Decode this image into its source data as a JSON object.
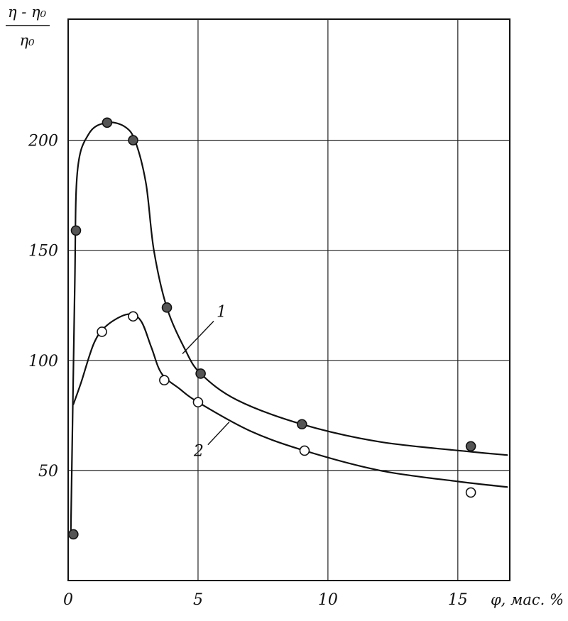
{
  "chart_data": {
    "type": "line",
    "title": "",
    "ylabel": {
      "numerator": "η - η₀",
      "denominator": "η₀"
    },
    "xlabel": "φ, мас. %",
    "xlim": [
      0,
      17
    ],
    "ylim": [
      0,
      255
    ],
    "x_ticks": [
      0,
      5,
      10,
      15
    ],
    "x_tick_labels": [
      "0",
      "5",
      "10",
      "15"
    ],
    "y_ticks": [
      50,
      100,
      150,
      200
    ],
    "y_tick_labels": [
      "50",
      "100",
      "150",
      "200"
    ],
    "x_gridlines": [
      5,
      10,
      15
    ],
    "y_gridlines": [
      50,
      100,
      150,
      200
    ],
    "grid": true,
    "series": [
      {
        "name": "1",
        "marker": "filled-circle",
        "points": [
          {
            "x": 0.2,
            "y": 21
          },
          {
            "x": 0.3,
            "y": 159
          },
          {
            "x": 1.5,
            "y": 208
          },
          {
            "x": 2.5,
            "y": 200
          },
          {
            "x": 3.8,
            "y": 124
          },
          {
            "x": 5.1,
            "y": 94
          },
          {
            "x": 9.0,
            "y": 71
          },
          {
            "x": 15.5,
            "y": 61
          }
        ],
        "curve": [
          {
            "x": 0.1,
            "y": 21
          },
          {
            "x": 0.25,
            "y": 130
          },
          {
            "x": 0.35,
            "y": 185
          },
          {
            "x": 0.8,
            "y": 203
          },
          {
            "x": 1.5,
            "y": 208
          },
          {
            "x": 2.2,
            "y": 206
          },
          {
            "x": 2.6,
            "y": 199
          },
          {
            "x": 3.0,
            "y": 180
          },
          {
            "x": 3.3,
            "y": 150
          },
          {
            "x": 3.8,
            "y": 124
          },
          {
            "x": 4.5,
            "y": 105
          },
          {
            "x": 5.1,
            "y": 94
          },
          {
            "x": 6.5,
            "y": 82
          },
          {
            "x": 9.0,
            "y": 71
          },
          {
            "x": 12.0,
            "y": 63
          },
          {
            "x": 15.5,
            "y": 58.5
          },
          {
            "x": 16.9,
            "y": 57
          }
        ]
      },
      {
        "name": "2",
        "marker": "open-circle",
        "points": [
          {
            "x": 1.3,
            "y": 113
          },
          {
            "x": 2.5,
            "y": 120
          },
          {
            "x": 3.7,
            "y": 91
          },
          {
            "x": 5.0,
            "y": 81
          },
          {
            "x": 9.1,
            "y": 59
          },
          {
            "x": 15.5,
            "y": 40
          }
        ],
        "curve": [
          {
            "x": 0.2,
            "y": 80
          },
          {
            "x": 0.5,
            "y": 90
          },
          {
            "x": 1.0,
            "y": 108
          },
          {
            "x": 1.5,
            "y": 116
          },
          {
            "x": 2.3,
            "y": 121
          },
          {
            "x": 2.8,
            "y": 118
          },
          {
            "x": 3.2,
            "y": 106
          },
          {
            "x": 3.6,
            "y": 94
          },
          {
            "x": 4.3,
            "y": 87
          },
          {
            "x": 5.0,
            "y": 81
          },
          {
            "x": 7.0,
            "y": 68
          },
          {
            "x": 9.1,
            "y": 59
          },
          {
            "x": 12.0,
            "y": 50
          },
          {
            "x": 15.0,
            "y": 45
          },
          {
            "x": 16.9,
            "y": 42.5
          }
        ]
      }
    ],
    "curve_labels": [
      {
        "text": "1",
        "series": "1",
        "anchor": {
          "x": 4.4,
          "y": 103
        }
      },
      {
        "text": "2",
        "series": "2",
        "anchor": {
          "x": 6.2,
          "y": 72
        }
      }
    ]
  }
}
